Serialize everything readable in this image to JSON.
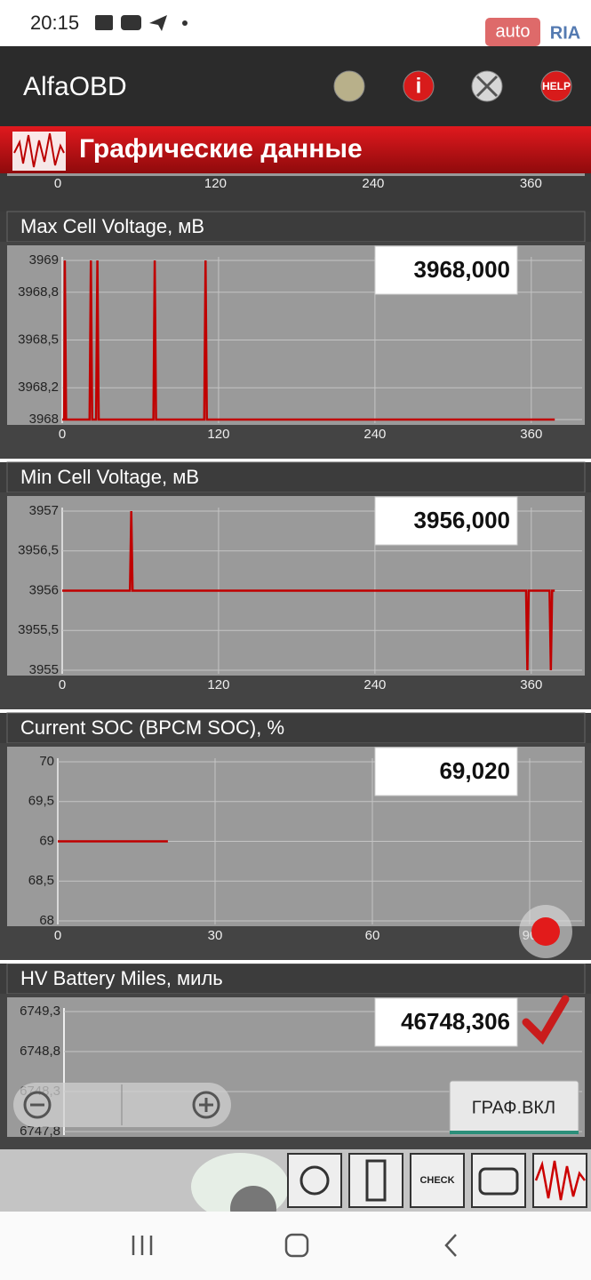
{
  "status_bar": {
    "time": "20:15"
  },
  "watermark": {
    "auto": "auto",
    "ria": "RIA"
  },
  "app_bar": {
    "title": "AlfaOBD",
    "help": "HELP"
  },
  "section": {
    "title": "Графические данные"
  },
  "top_axis": {
    "xlim": [
      0,
      399
    ],
    "xticks": [
      0,
      120,
      240,
      360
    ]
  },
  "panels": [
    {
      "title": "Max Cell Voltage, мВ",
      "readout": "3968,000",
      "xlim": [
        0,
        399
      ],
      "xticks": [
        0,
        120,
        240,
        360
      ],
      "ylim": [
        3968,
        3969
      ],
      "yticks": [
        3968,
        {
          "value": 3968.2,
          "label": "3968,2"
        },
        {
          "value": 3968.5,
          "label": "3968,5"
        },
        {
          "value": 3968.8,
          "label": "3968,8"
        },
        3969
      ],
      "series": [
        {
          "color": "#c00000",
          "x": [
            0,
            1.5,
            2,
            3,
            21,
            22,
            23,
            26,
            27,
            28,
            70,
            71,
            72,
            109,
            110,
            111,
            378
          ],
          "values": [
            3968,
            3968,
            3969,
            3968,
            3968,
            3969,
            3968,
            3968,
            3969,
            3968,
            3968,
            3969,
            3968,
            3968,
            3969,
            3968,
            3968
          ]
        }
      ]
    },
    {
      "title": "Min Cell Voltage, мВ",
      "readout": "3956,000",
      "xlim": [
        0,
        399
      ],
      "xticks": [
        0,
        120,
        240,
        360
      ],
      "ylim": [
        3955,
        3957
      ],
      "yticks": [
        3955,
        {
          "value": 3955.5,
          "label": "3955,5"
        },
        3956,
        {
          "value": 3956.5,
          "label": "3956,5"
        },
        3957
      ],
      "series": [
        {
          "color": "#c00000",
          "x": [
            0,
            52,
            53,
            54,
            356,
            357,
            358,
            374,
            375,
            376,
            378
          ],
          "values": [
            3956,
            3956,
            3957,
            3956,
            3956,
            3955,
            3956,
            3956,
            3955,
            3956,
            3956
          ]
        }
      ]
    },
    {
      "title": "Current SOC (BPCM SOC), %",
      "readout": "69,020",
      "xlim": [
        0,
        100
      ],
      "xticks": [
        0,
        30,
        60,
        90
      ],
      "ylim": [
        68,
        70
      ],
      "yticks": [
        68,
        {
          "value": 68.5,
          "label": "68,5"
        },
        69,
        {
          "value": 69.5,
          "label": "69,5"
        },
        70
      ],
      "series": [
        {
          "color": "#c00000",
          "x": [
            0,
            21
          ],
          "values": [
            69,
            69
          ]
        }
      ]
    },
    {
      "title": "HV Battery Miles, миль",
      "readout": "46748,306",
      "ylim": [
        6747.8,
        6749.3
      ],
      "yticks": [
        {
          "value": 6747.8,
          "label": "6747,8"
        },
        {
          "value": 6748.3,
          "label": "6748,3"
        },
        {
          "value": 6748.8,
          "label": "6748,8"
        },
        {
          "value": 6749.3,
          "label": "6749,3"
        }
      ]
    }
  ],
  "graph_button": "ГРАФ.ВКЛ",
  "toolbar": {
    "check": "CHECK"
  }
}
